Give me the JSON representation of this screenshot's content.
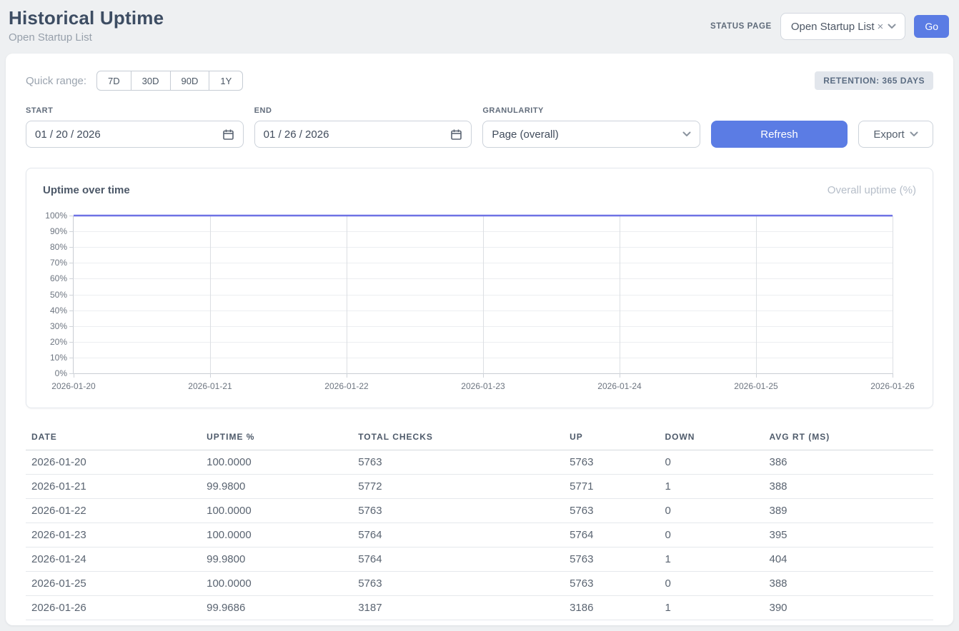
{
  "page": {
    "title": "Historical Uptime",
    "subtitle": "Open Startup List"
  },
  "status_page": {
    "label": "STATUS PAGE",
    "selected": "Open Startup List",
    "clear_icon": "×",
    "go_label": "Go"
  },
  "filters": {
    "quick_range_label": "Quick range:",
    "quick_ranges": [
      "7D",
      "30D",
      "90D",
      "1Y"
    ],
    "retention_badge": "RETENTION: 365 DAYS",
    "start_label": "START",
    "start_value": "01 / 20 / 2026",
    "end_label": "END",
    "end_value": "01 / 26 / 2026",
    "granularity_label": "GRANULARITY",
    "granularity_value": "Page (overall)",
    "refresh_label": "Refresh",
    "export_label": "Export"
  },
  "chart": {
    "title": "Uptime over time",
    "legend": "Overall uptime (%)"
  },
  "chart_data": {
    "type": "line",
    "title": "Uptime over time",
    "x": [
      "2026-01-20",
      "2026-01-21",
      "2026-01-22",
      "2026-01-23",
      "2026-01-24",
      "2026-01-25",
      "2026-01-26"
    ],
    "series": [
      {
        "name": "Overall uptime (%)",
        "values": [
          100.0,
          99.98,
          100.0,
          100.0,
          99.98,
          100.0,
          99.9686
        ]
      }
    ],
    "ylim": [
      0,
      100
    ],
    "y_ticks": [
      "0%",
      "10%",
      "20%",
      "30%",
      "40%",
      "50%",
      "60%",
      "70%",
      "80%",
      "90%",
      "100%"
    ],
    "grid": true,
    "legend_position": "top-right",
    "line_color": "#6e72e4"
  },
  "table": {
    "columns": [
      "DATE",
      "UPTIME %",
      "TOTAL CHECKS",
      "UP",
      "DOWN",
      "AVG RT (MS)"
    ],
    "rows": [
      [
        "2026-01-20",
        "100.0000",
        "5763",
        "5763",
        "0",
        "386"
      ],
      [
        "2026-01-21",
        "99.9800",
        "5772",
        "5771",
        "1",
        "388"
      ],
      [
        "2026-01-22",
        "100.0000",
        "5763",
        "5763",
        "0",
        "389"
      ],
      [
        "2026-01-23",
        "100.0000",
        "5764",
        "5764",
        "0",
        "395"
      ],
      [
        "2026-01-24",
        "99.9800",
        "5764",
        "5763",
        "1",
        "404"
      ],
      [
        "2026-01-25",
        "100.0000",
        "5763",
        "5763",
        "0",
        "388"
      ],
      [
        "2026-01-26",
        "99.9686",
        "3187",
        "3186",
        "1",
        "390"
      ]
    ]
  },
  "colors": {
    "accent_blue": "#5b7ce4",
    "chart_line": "#6e72e4",
    "page_background": "#eef0f2",
    "card_background": "#ffffff"
  }
}
